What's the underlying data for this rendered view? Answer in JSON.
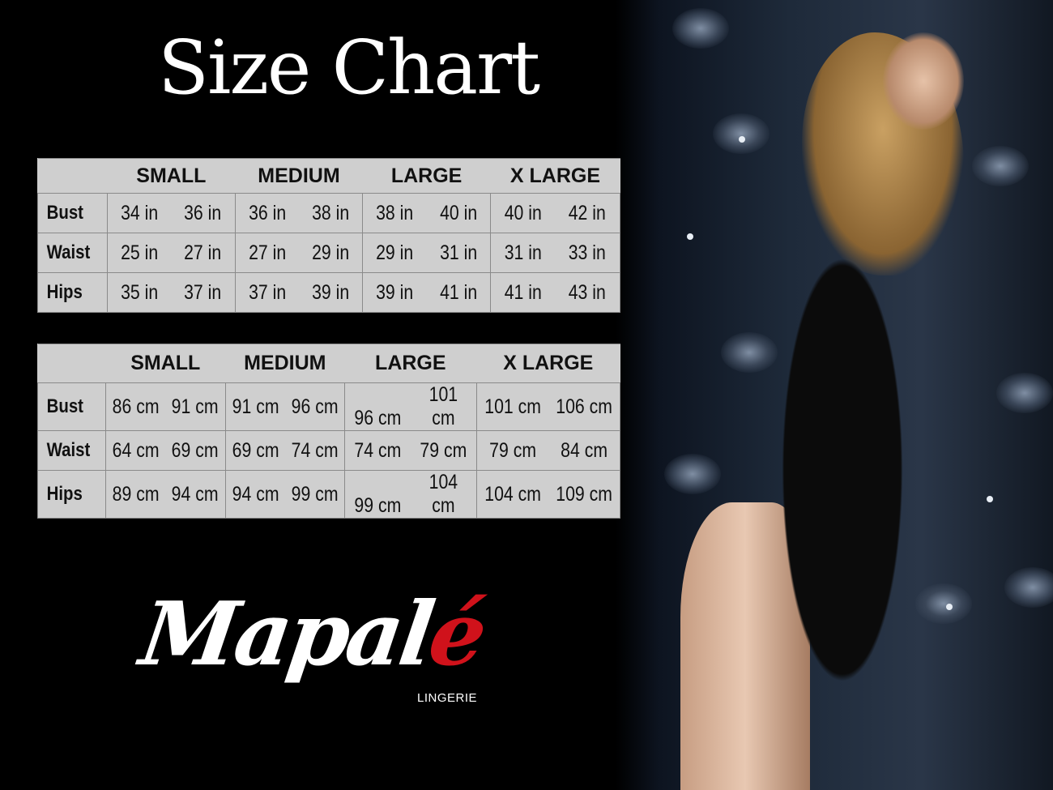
{
  "title": "Size Chart",
  "sizes": [
    "SMALL",
    "MEDIUM",
    "LARGE",
    "X LARGE"
  ],
  "inches_table": {
    "rows": [
      {
        "label": "Bust",
        "values": [
          "34 in",
          "36 in",
          "36 in",
          "38 in",
          "38 in",
          "40 in",
          "40 in",
          "42 in"
        ]
      },
      {
        "label": "Waist",
        "values": [
          "25 in",
          "27 in",
          "27 in",
          "29 in",
          "29 in",
          "31 in",
          "31 in",
          "33 in"
        ]
      },
      {
        "label": "Hips",
        "values": [
          "35 in",
          "37 in",
          "37 in",
          "39 in",
          "39 in",
          "41 in",
          "41 in",
          "43 in"
        ]
      }
    ]
  },
  "cm_table": {
    "rows": [
      {
        "label": "Bust",
        "values": [
          "86 cm",
          "91 cm",
          "91 cm",
          "96 cm",
          "96 cm",
          "101 cm",
          "101 cm",
          "106 cm"
        ]
      },
      {
        "label": "Waist",
        "values": [
          "64 cm",
          "69 cm",
          "69 cm",
          "74 cm",
          "74 cm",
          "79  cm",
          "79 cm",
          "84 cm"
        ]
      },
      {
        "label": "Hips",
        "values": [
          "89 cm",
          "94 cm",
          "94 cm",
          "99 cm",
          "99 cm",
          "104 cm",
          "104 cm",
          "109 cm"
        ]
      }
    ]
  },
  "brand": {
    "name_main": "Mapal",
    "name_accent": "é",
    "tagline": "LINGERIE",
    "accent_color": "#d0121b"
  }
}
